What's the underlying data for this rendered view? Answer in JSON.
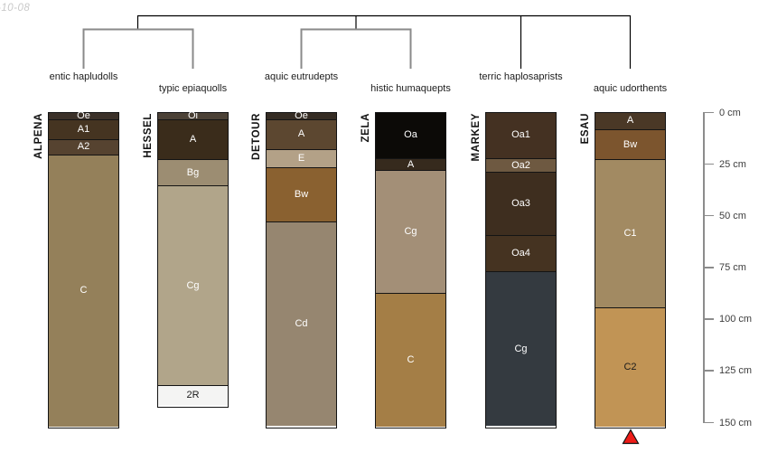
{
  "page": {
    "date_stamp": "-10-08"
  },
  "chart_data": {
    "type": "bar",
    "subtype": "soil-profile-sketches-with-dendrogram",
    "title": "",
    "depth_axis": {
      "unit": "cm",
      "min": 0,
      "max": 150,
      "ticks": [
        {
          "value": 0,
          "label": "0 cm"
        },
        {
          "value": 25,
          "label": "25 cm"
        },
        {
          "value": 50,
          "label": "50 cm"
        },
        {
          "value": 75,
          "label": "75 cm"
        },
        {
          "value": 100,
          "label": "100 cm"
        },
        {
          "value": 125,
          "label": "125 cm"
        },
        {
          "value": 150,
          "label": "150 cm"
        }
      ]
    },
    "dendrogram": {
      "leaf_labels": [
        "entic hapludolls",
        "typic epiaquolls",
        "aquic eutrudepts",
        "histic humaquepts",
        "terric haplosaprists",
        "aquic udorthents"
      ],
      "clusters": [
        [
          "entic hapludolls",
          "typic epiaquolls"
        ],
        [
          "aquic eutrudepts",
          "histic humaquepts"
        ],
        [
          "terric haplosaprists"
        ],
        [
          "aquic udorthents"
        ]
      ]
    },
    "profiles": [
      {
        "series": "ALPENA",
        "subgroup": "entic hapludolls",
        "horizons": [
          {
            "name": "Oe",
            "top_cm": 0,
            "bottom_cm": 4,
            "color": "#3b3129",
            "label_color": "#ffffff"
          },
          {
            "name": "A1",
            "top_cm": 4,
            "bottom_cm": 14,
            "color": "#453421",
            "label_color": "#ffffff"
          },
          {
            "name": "A2",
            "top_cm": 14,
            "bottom_cm": 22,
            "color": "#564330",
            "label_color": "#ffffff"
          },
          {
            "name": "C",
            "top_cm": 22,
            "bottom_cm": 153,
            "color": "#94805a",
            "label_color": "#ffffff"
          }
        ]
      },
      {
        "series": "HESSEL",
        "subgroup": "typic epiaquolls",
        "horizons": [
          {
            "name": "Oi",
            "top_cm": 0,
            "bottom_cm": 4,
            "color": "#4b4136",
            "label_color": "#ffffff"
          },
          {
            "name": "A",
            "top_cm": 4,
            "bottom_cm": 24,
            "color": "#3a2c1b",
            "label_color": "#ffffff"
          },
          {
            "name": "Bg",
            "top_cm": 24,
            "bottom_cm": 37,
            "color": "#9c8d72",
            "label_color": "#ffffff"
          },
          {
            "name": "Cg",
            "top_cm": 37,
            "bottom_cm": 134,
            "color": "#b1a58a",
            "label_color": "#ffffff"
          },
          {
            "name": "2R",
            "top_cm": 134,
            "bottom_cm": 143,
            "color": "#f4f4f3",
            "label_color": "#1a1a1a"
          }
        ]
      },
      {
        "series": "DETOUR",
        "subgroup": "aquic eutrudepts",
        "horizons": [
          {
            "name": "Oe",
            "top_cm": 0,
            "bottom_cm": 4,
            "color": "#352c23",
            "label_color": "#ffffff"
          },
          {
            "name": "A",
            "top_cm": 4,
            "bottom_cm": 19,
            "color": "#5c4730",
            "label_color": "#ffffff"
          },
          {
            "name": "E",
            "top_cm": 19,
            "bottom_cm": 28,
            "color": "#b3a187",
            "label_color": "#ffffff"
          },
          {
            "name": "Bw",
            "top_cm": 28,
            "bottom_cm": 55,
            "color": "#8a6130",
            "label_color": "#ffffff"
          },
          {
            "name": "Cd",
            "top_cm": 55,
            "bottom_cm": 153,
            "color": "#968670",
            "label_color": "#ffffff"
          }
        ]
      },
      {
        "series": "ZELA",
        "subgroup": "histic humaquepts",
        "horizons": [
          {
            "name": "Oa",
            "top_cm": 0,
            "bottom_cm": 23,
            "color": "#0c0a07",
            "label_color": "#ffffff"
          },
          {
            "name": "A",
            "top_cm": 23,
            "bottom_cm": 29,
            "color": "#362a1d",
            "label_color": "#ffffff"
          },
          {
            "name": "Cg",
            "top_cm": 29,
            "bottom_cm": 89,
            "color": "#a38f77",
            "label_color": "#ffffff"
          },
          {
            "name": "C",
            "top_cm": 89,
            "bottom_cm": 153,
            "color": "#a47e46",
            "label_color": "#ffffff"
          }
        ]
      },
      {
        "series": "MARKEY",
        "subgroup": "terric haplosaprists",
        "horizons": [
          {
            "name": "Oa1",
            "top_cm": 0,
            "bottom_cm": 23,
            "color": "#443122",
            "label_color": "#ffffff"
          },
          {
            "name": "Oa2",
            "top_cm": 23,
            "bottom_cm": 30,
            "color": "#6e5941",
            "label_color": "#ffffff"
          },
          {
            "name": "Oa3",
            "top_cm": 30,
            "bottom_cm": 61,
            "color": "#3e2e1f",
            "label_color": "#ffffff"
          },
          {
            "name": "Oa4",
            "top_cm": 61,
            "bottom_cm": 79,
            "color": "#453321",
            "label_color": "#ffffff"
          },
          {
            "name": "Cg",
            "top_cm": 79,
            "bottom_cm": 153,
            "color": "#343a40",
            "label_color": "#ffffff"
          }
        ]
      },
      {
        "series": "ESAU",
        "subgroup": "aquic udorthents",
        "horizons": [
          {
            "name": "A",
            "top_cm": 0,
            "bottom_cm": 9,
            "color": "#4a3826",
            "label_color": "#ffffff"
          },
          {
            "name": "Bw",
            "top_cm": 9,
            "bottom_cm": 24,
            "color": "#7c552e",
            "label_color": "#ffffff"
          },
          {
            "name": "C1",
            "top_cm": 24,
            "bottom_cm": 96,
            "color": "#a28a62",
            "label_color": "#ffffff"
          },
          {
            "name": "C2",
            "top_cm": 96,
            "bottom_cm": 153,
            "color": "#c19455",
            "label_color": "#1a1a1a"
          }
        ]
      }
    ],
    "marker": {
      "shape": "triangle-up",
      "color": "#ee1c18",
      "outline": "#111111",
      "under_series": "ESAU"
    },
    "style": {
      "tree_line_color": "#000000",
      "tree_subgroup_line_color": "#8a8a8a",
      "horizon_border_color": "#141414",
      "axis_color": "#8c8c8c"
    }
  }
}
